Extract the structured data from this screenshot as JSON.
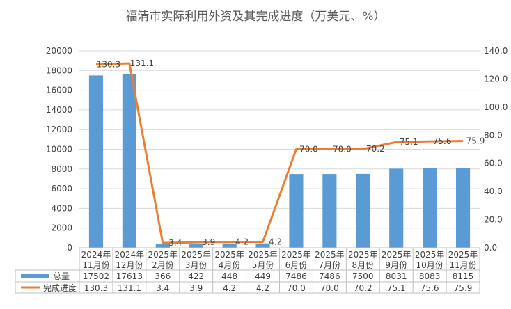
{
  "chart_data": {
    "type": "bar",
    "title": "福清市实际利用外资及其完成进度（万美元、%）",
    "categories": [
      [
        "2024年",
        "11月份"
      ],
      [
        "2024年",
        "12月份"
      ],
      [
        "2025年",
        "2月份"
      ],
      [
        "2025年",
        "3月份"
      ],
      [
        "2025年",
        "4月份"
      ],
      [
        "2025年",
        "5月份"
      ],
      [
        "2025年",
        "6月份"
      ],
      [
        "2025年",
        "7月份"
      ],
      [
        "2025年",
        "8月份"
      ],
      [
        "2025年",
        "9月份"
      ],
      [
        "2025年",
        "10月份"
      ],
      [
        "2025年",
        "11月份"
      ]
    ],
    "series": [
      {
        "name": "总量",
        "type": "bar",
        "axis": "left",
        "color": "#5b9bd5",
        "values": [
          17502,
          17613,
          366,
          422,
          448,
          449,
          7486,
          7486,
          7500,
          8031,
          8083,
          8115
        ]
      },
      {
        "name": "完成进度",
        "type": "line",
        "axis": "right",
        "color": "#ed7d31",
        "values": [
          130.3,
          131.1,
          3.4,
          3.9,
          4.2,
          4.2,
          70.0,
          70.0,
          70.2,
          75.1,
          75.6,
          75.9
        ],
        "labels": [
          "130.3",
          "131.1",
          "3.4",
          "3.9",
          "4.2",
          "4.2",
          "70.0",
          "70.0",
          "70.2",
          "75.1",
          "75.6",
          "75.9"
        ]
      }
    ],
    "y_left": {
      "min": 0,
      "max": 20000,
      "ticks": [
        "0",
        "2000",
        "4000",
        "6000",
        "8000",
        "10000",
        "12000",
        "14000",
        "16000",
        "18000",
        "20000"
      ]
    },
    "y_right": {
      "min": 0,
      "max": 140,
      "ticks": [
        "0.0",
        "20.0",
        "40.0",
        "60.0",
        "80.0",
        "100.0",
        "120.0",
        "140.0"
      ]
    },
    "table": {
      "rows": [
        [
          "17502",
          "17613",
          "366",
          "422",
          "448",
          "449",
          "7486",
          "7486",
          "7500",
          "8031",
          "8083",
          "8115"
        ],
        [
          "130.3",
          "131.1",
          "3.4",
          "3.9",
          "4.2",
          "4.2",
          "70.0",
          "70.0",
          "70.2",
          "75.1",
          "75.6",
          "75.9"
        ]
      ]
    },
    "grid": true,
    "legend": "data-table"
  }
}
